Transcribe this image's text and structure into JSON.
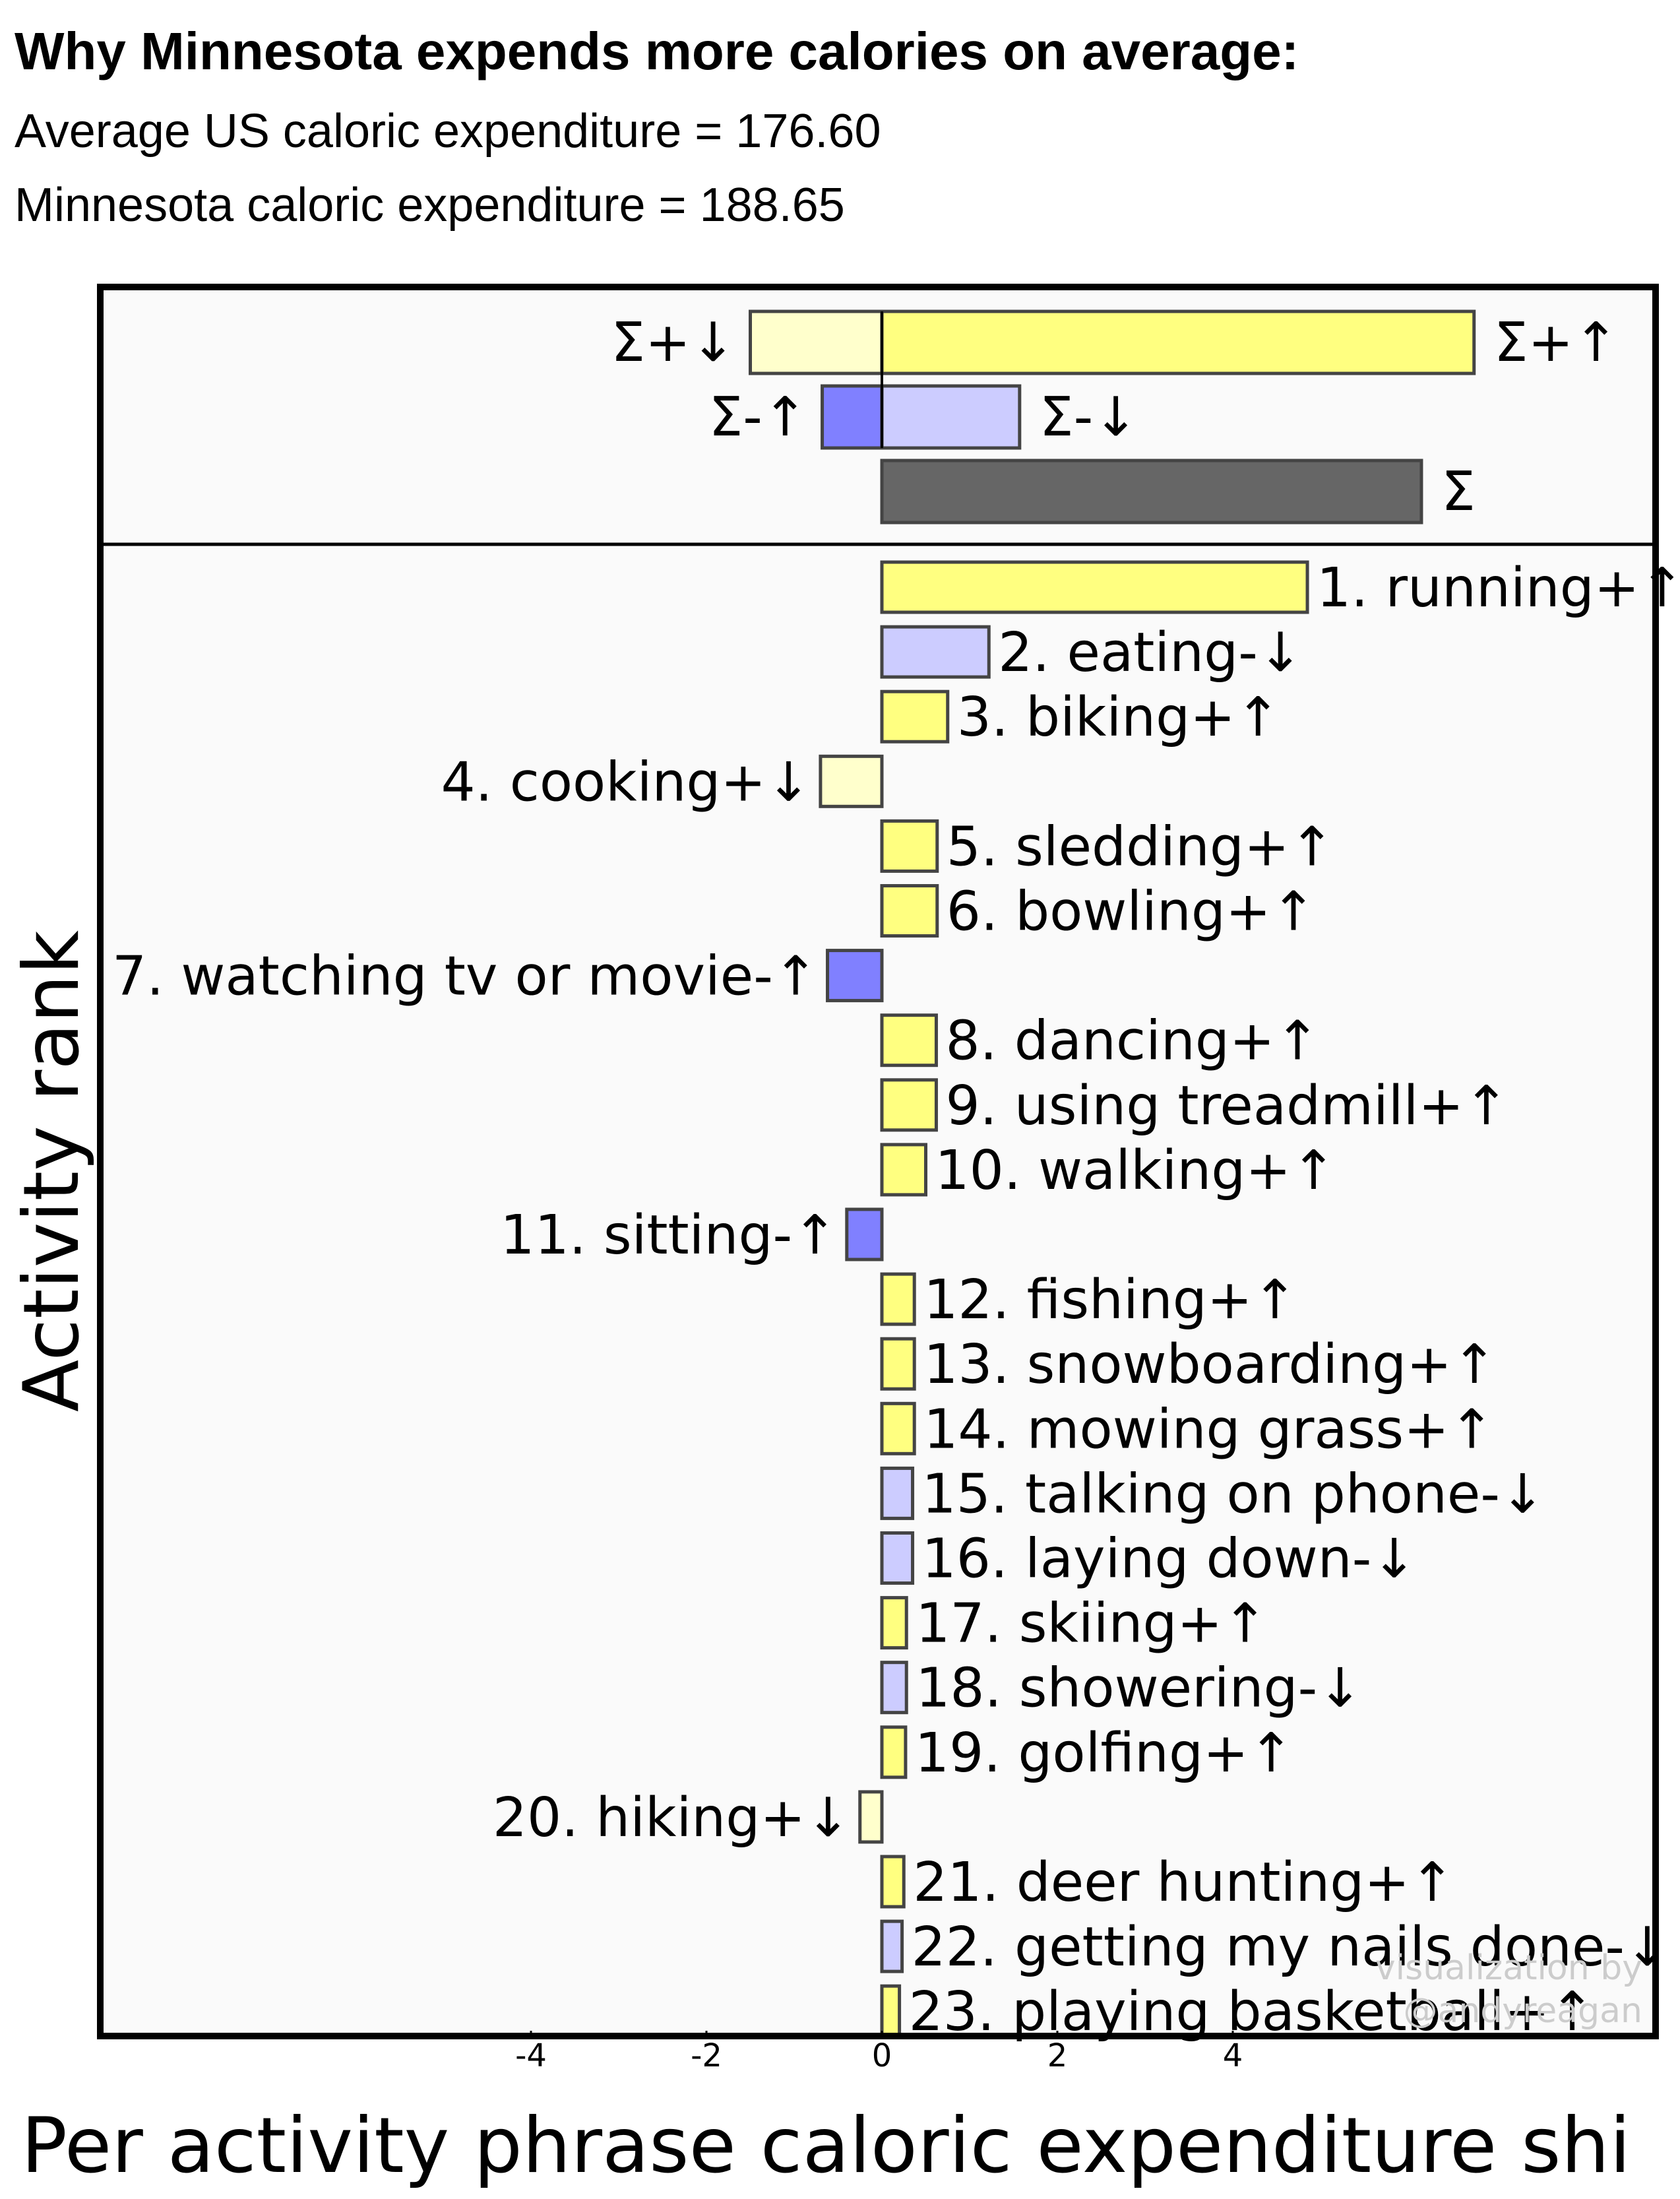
{
  "header": {
    "title": "Why Minnesota expends more calories on average:",
    "subtitle_1": "Average US caloric expenditure = 176.60",
    "subtitle_2": "Minnesota caloric expenditure = 188.65"
  },
  "chart_data": {
    "type": "bar",
    "orientation": "horizontal",
    "ylabel": "Activity rank",
    "xlabel": "Per activity phrase caloric expenditure shi",
    "x_ticks": [
      "-4",
      "-2",
      "0",
      "2",
      "4"
    ],
    "xlim": [
      -9,
      8.6
    ],
    "summary": [
      {
        "label": "Σ+↓",
        "value": -1.5,
        "kind": "pos_down"
      },
      {
        "label": "Σ+↑",
        "value": 6.75,
        "kind": "pos_up"
      },
      {
        "label": "Σ-↑",
        "value": -0.68,
        "kind": "neg_up"
      },
      {
        "label": "Σ-↓",
        "value": 1.57,
        "kind": "neg_down"
      },
      {
        "label": "Σ",
        "value": 6.15,
        "kind": "total"
      }
    ],
    "activities": [
      {
        "label": "1. running+↑",
        "value": 4.85,
        "kind": "pos_up"
      },
      {
        "label": "2. eating-↓",
        "value": 1.22,
        "kind": "neg_down"
      },
      {
        "label": "3. biking+↑",
        "value": 0.75,
        "kind": "pos_up"
      },
      {
        "label": "4. cooking+↓",
        "value": -0.7,
        "kind": "pos_down"
      },
      {
        "label": "5. sledding+↑",
        "value": 0.63,
        "kind": "pos_up"
      },
      {
        "label": "6. bowling+↑",
        "value": 0.63,
        "kind": "pos_up"
      },
      {
        "label": "7. watching tv or movie-↑",
        "value": -0.62,
        "kind": "neg_up"
      },
      {
        "label": "8. dancing+↑",
        "value": 0.62,
        "kind": "pos_up"
      },
      {
        "label": "9. using treadmill+↑",
        "value": 0.62,
        "kind": "pos_up"
      },
      {
        "label": "10. walking+↑",
        "value": 0.5,
        "kind": "pos_up"
      },
      {
        "label": "11. sitting-↑",
        "value": -0.4,
        "kind": "neg_up"
      },
      {
        "label": "12. fishing+↑",
        "value": 0.37,
        "kind": "pos_up"
      },
      {
        "label": "13. snowboarding+↑",
        "value": 0.37,
        "kind": "pos_up"
      },
      {
        "label": "14. mowing grass+↑",
        "value": 0.37,
        "kind": "pos_up"
      },
      {
        "label": "15. talking on phone-↓",
        "value": 0.35,
        "kind": "neg_down"
      },
      {
        "label": "16. laying down-↓",
        "value": 0.35,
        "kind": "neg_down"
      },
      {
        "label": "17. skiing+↑",
        "value": 0.28,
        "kind": "pos_up"
      },
      {
        "label": "18. showering-↓",
        "value": 0.28,
        "kind": "neg_down"
      },
      {
        "label": "19. golfing+↑",
        "value": 0.27,
        "kind": "pos_up"
      },
      {
        "label": "20. hiking+↓",
        "value": -0.25,
        "kind": "pos_down"
      },
      {
        "label": "21. deer hunting+↑",
        "value": 0.25,
        "kind": "pos_up"
      },
      {
        "label": "22. getting my nails done-↓",
        "value": 0.23,
        "kind": "neg_down"
      },
      {
        "label": "23. playing basketball+↑",
        "value": 0.2,
        "kind": "pos_up"
      }
    ],
    "colors": {
      "pos_up": "#ffff80",
      "pos_down": "#ffffcc",
      "neg_up": "#8080ff",
      "neg_down": "#ccccff",
      "total": "#666666"
    }
  },
  "watermark": {
    "line_1": "visualization by",
    "line_2": "@andyreagan"
  }
}
